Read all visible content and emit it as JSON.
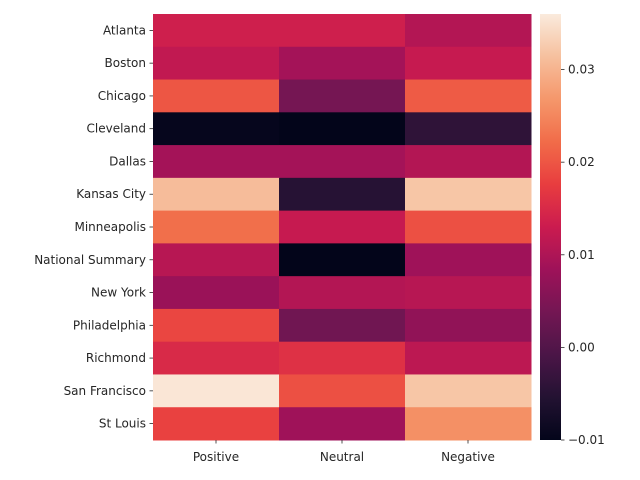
{
  "chart_data": {
    "type": "heatmap",
    "title": "",
    "xlabel": "",
    "ylabel": "",
    "rows": [
      "Atlanta",
      "Boston",
      "Chicago",
      "Cleveland",
      "Dallas",
      "Kansas City",
      "Minneapolis",
      "National Summary",
      "New York",
      "Philadelphia",
      "Richmond",
      "San Francisco",
      "St Louis"
    ],
    "columns": [
      "Positive",
      "Neutral",
      "Negative"
    ],
    "values": [
      [
        0.0135,
        0.0135,
        0.0105
      ],
      [
        0.012,
        0.009,
        0.0125
      ],
      [
        0.02,
        0.004,
        0.0205
      ],
      [
        -0.0095,
        -0.01,
        -0.004
      ],
      [
        0.009,
        0.009,
        0.0105
      ],
      [
        0.031,
        -0.005,
        0.032
      ],
      [
        0.0225,
        0.0125,
        0.0195
      ],
      [
        0.011,
        -0.011,
        0.0085
      ],
      [
        0.008,
        0.0105,
        0.011
      ],
      [
        0.0185,
        0.0035,
        0.007
      ],
      [
        0.015,
        0.016,
        0.0115
      ],
      [
        0.0355,
        0.0195,
        0.032
      ],
      [
        0.018,
        0.0085,
        0.026
      ]
    ],
    "colorbar": {
      "min": -0.01,
      "max": 0.036,
      "ticks": [
        -0.01,
        0.0,
        0.01,
        0.02,
        0.03
      ],
      "tick_labels": [
        "−0.01",
        "0.00",
        "0.01",
        "0.02",
        "0.03"
      ],
      "colormap": "rocket"
    }
  }
}
